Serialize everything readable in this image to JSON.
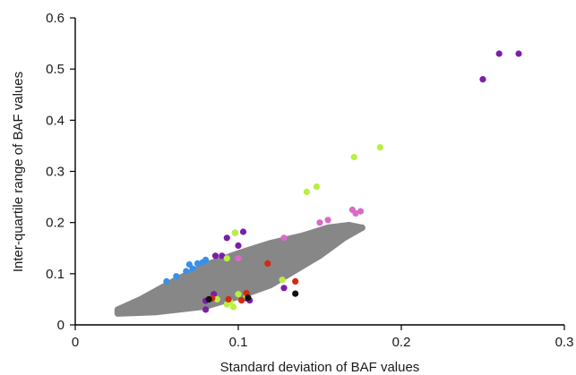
{
  "chart_data": {
    "type": "scatter",
    "title": "",
    "xlabel": "Standard deviation of BAF values",
    "ylabel": "Inter-quartile range of BAF values",
    "xlim": [
      0,
      0.3
    ],
    "ylim": [
      0,
      0.6
    ],
    "xticks": [
      0,
      0.1,
      0.2,
      0.3
    ],
    "xtick_labels": [
      "0",
      "0.1",
      "0.2",
      "0.3"
    ],
    "yticks": [
      0,
      0.1,
      0.2,
      0.3,
      0.4,
      0.5,
      0.6
    ],
    "ytick_labels": [
      "0",
      "0.1",
      "0.2",
      "0.3",
      "0.4",
      "0.5",
      "0.6"
    ],
    "grid": false,
    "legend": "none",
    "colors": {
      "gray": "#878787",
      "purple": "#7a1fa8",
      "green": "#b8f040",
      "pink": "#d86ac8",
      "blue": "#3a8fe8",
      "red": "#d42a10",
      "black": "#111111"
    },
    "gray_cloud": {
      "color": "#878787",
      "lower_edge": [
        [
          0.026,
          0.022
        ],
        [
          0.05,
          0.025
        ],
        [
          0.08,
          0.036
        ],
        [
          0.1,
          0.055
        ],
        [
          0.12,
          0.078
        ],
        [
          0.15,
          0.135
        ],
        [
          0.165,
          0.17
        ],
        [
          0.176,
          0.19
        ]
      ],
      "upper_edge": [
        [
          0.026,
          0.03
        ],
        [
          0.04,
          0.05
        ],
        [
          0.06,
          0.085
        ],
        [
          0.08,
          0.117
        ],
        [
          0.1,
          0.14
        ],
        [
          0.12,
          0.16
        ],
        [
          0.14,
          0.175
        ],
        [
          0.155,
          0.19
        ],
        [
          0.168,
          0.195
        ]
      ]
    },
    "series": [
      {
        "color": "#878787",
        "points": [
          [
            0.105,
            0.125
          ],
          [
            0.115,
            0.15
          ],
          [
            0.128,
            0.165
          ],
          [
            0.14,
            0.175
          ],
          [
            0.148,
            0.18
          ],
          [
            0.16,
            0.19
          ],
          [
            0.168,
            0.195
          ],
          [
            0.176,
            0.19
          ],
          [
            0.158,
            0.18
          ],
          [
            0.142,
            0.168
          ]
        ]
      },
      {
        "color": "#7a1fa8",
        "points": [
          [
            0.25,
            0.48
          ],
          [
            0.26,
            0.53
          ],
          [
            0.272,
            0.53
          ],
          [
            0.086,
            0.135
          ],
          [
            0.09,
            0.135
          ],
          [
            0.1,
            0.155
          ],
          [
            0.085,
            0.06
          ],
          [
            0.08,
            0.047
          ],
          [
            0.105,
            0.052
          ],
          [
            0.098,
            0.18
          ],
          [
            0.103,
            0.182
          ],
          [
            0.08,
            0.03
          ],
          [
            0.107,
            0.048
          ],
          [
            0.128,
            0.072
          ],
          [
            0.093,
            0.17
          ]
        ]
      },
      {
        "color": "#b8f040",
        "points": [
          [
            0.187,
            0.347
          ],
          [
            0.171,
            0.328
          ],
          [
            0.148,
            0.27
          ],
          [
            0.142,
            0.26
          ],
          [
            0.098,
            0.18
          ],
          [
            0.093,
            0.13
          ],
          [
            0.127,
            0.088
          ],
          [
            0.1,
            0.06
          ],
          [
            0.087,
            0.05
          ],
          [
            0.095,
            0.045
          ],
          [
            0.093,
            0.04
          ],
          [
            0.097,
            0.035
          ],
          [
            0.105,
            0.055
          ]
        ]
      },
      {
        "color": "#d86ac8",
        "points": [
          [
            0.17,
            0.225
          ],
          [
            0.175,
            0.222
          ],
          [
            0.172,
            0.218
          ],
          [
            0.155,
            0.205
          ],
          [
            0.15,
            0.2
          ],
          [
            0.128,
            0.17
          ],
          [
            0.1,
            0.13
          ]
        ]
      },
      {
        "color": "#3a8fe8",
        "points": [
          [
            0.056,
            0.085
          ],
          [
            0.062,
            0.095
          ],
          [
            0.068,
            0.105
          ],
          [
            0.072,
            0.11
          ],
          [
            0.07,
            0.118
          ],
          [
            0.075,
            0.12
          ],
          [
            0.078,
            0.122
          ],
          [
            0.08,
            0.127
          ]
        ]
      },
      {
        "color": "#d42a10",
        "points": [
          [
            0.118,
            0.12
          ],
          [
            0.135,
            0.085
          ],
          [
            0.094,
            0.05
          ],
          [
            0.105,
            0.062
          ],
          [
            0.102,
            0.048
          ],
          [
            0.084,
            0.052
          ]
        ]
      },
      {
        "color": "#111111",
        "points": [
          [
            0.135,
            0.061
          ],
          [
            0.082,
            0.05
          ],
          [
            0.106,
            0.053
          ]
        ]
      }
    ]
  }
}
